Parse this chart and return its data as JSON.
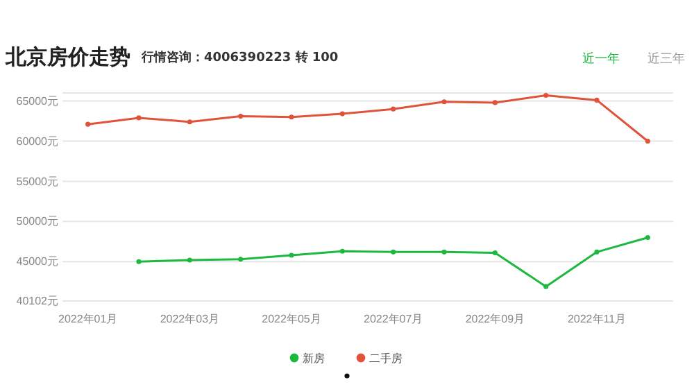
{
  "chart_data": {
    "type": "line",
    "title": "北京房价走势",
    "subtitle": "行情咨询：4006390223 转 100",
    "annotations": [
      "近一年",
      "近三年"
    ],
    "categories": [
      "2022年01月",
      null,
      "2022年03月",
      null,
      "2022年05月",
      null,
      "2022年07月",
      null,
      "2022年09月",
      null,
      "2022年11月",
      null
    ],
    "series": [
      {
        "name": "新房",
        "color": "#1db83f",
        "values": [
          null,
          45000,
          45200,
          45300,
          45800,
          46300,
          46200,
          46200,
          46100,
          41900,
          46200,
          48000
        ]
      },
      {
        "name": "二手房",
        "color": "#e0533a",
        "values": [
          62100,
          62900,
          62400,
          63100,
          63000,
          63400,
          64000,
          64900,
          64800,
          65700,
          65100,
          60000
        ]
      }
    ],
    "ylim": [
      40102,
      66000
    ],
    "yticks": [
      {
        "value": 40102,
        "label": "40102元"
      },
      {
        "value": 45000,
        "label": "45000元"
      },
      {
        "value": 50000,
        "label": "50000元"
      },
      {
        "value": 55000,
        "label": "55000元"
      },
      {
        "value": 60000,
        "label": "60000元"
      },
      {
        "value": 65000,
        "label": "65000元"
      }
    ],
    "grid": "y",
    "legend": "bottom",
    "marker": "circle",
    "line_style": "solid"
  }
}
